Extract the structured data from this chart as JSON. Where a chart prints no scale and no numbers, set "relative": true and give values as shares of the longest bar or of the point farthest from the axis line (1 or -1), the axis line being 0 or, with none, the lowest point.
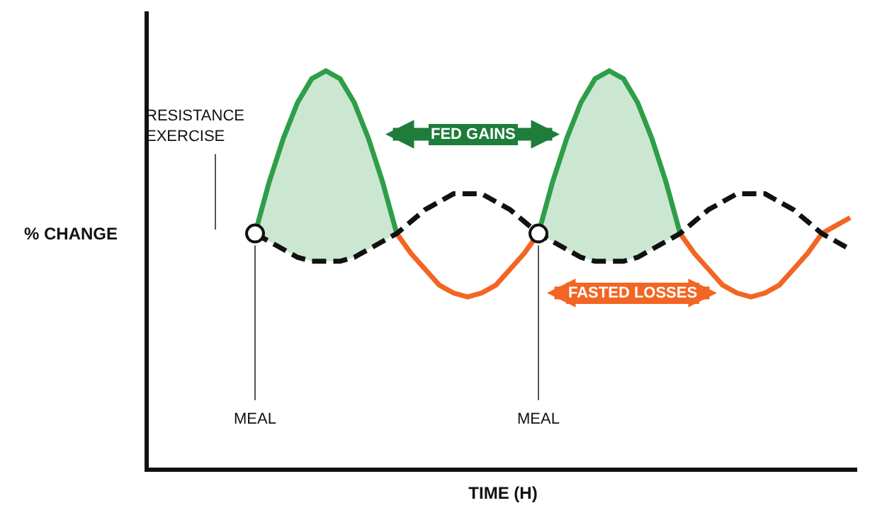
{
  "chart_data": {
    "type": "line",
    "relative": true,
    "xlabel": "TIME (H)",
    "ylabel": "% CHANGE",
    "grid": false,
    "tick_labels": false,
    "categories": [
      null,
      null,
      null,
      null,
      null,
      null,
      null,
      null,
      null,
      null,
      null,
      null,
      null,
      null,
      null,
      null,
      null,
      null,
      null,
      null,
      null,
      null,
      null,
      null,
      null,
      null,
      null,
      null,
      null,
      null,
      null,
      null,
      null,
      null,
      null,
      null,
      null,
      null,
      null,
      null,
      null,
      null,
      null,
      null,
      null,
      null,
      null,
      null,
      null,
      null,
      null
    ],
    "series": [
      {
        "color": "#2e9e48",
        "values": [
          null,
          null,
          null,
          null,
          null,
          null,
          null,
          null,
          0.59,
          0.72,
          0.83,
          0.92,
          0.98,
          1.0,
          0.98,
          0.92,
          0.83,
          0.72,
          0.59,
          null,
          null,
          null,
          null,
          null,
          null,
          null,
          null,
          null,
          null,
          null,
          null,
          null,
          null,
          null,
          null,
          null,
          null,
          null,
          null,
          null,
          null,
          null,
          null,
          null,
          null,
          null,
          null,
          null,
          null,
          null,
          null
        ],
        "lower": [
          null,
          null,
          null,
          null,
          null,
          null,
          null,
          null,
          0.59,
          0.57,
          0.55,
          0.53,
          0.52,
          0.52,
          0.52,
          0.53,
          0.55,
          0.57,
          0.59,
          null,
          null,
          null,
          null,
          null,
          null,
          null,
          null,
          null,
          null,
          null,
          null,
          null,
          null,
          null,
          null,
          null,
          null,
          null,
          null,
          null,
          null,
          null,
          null,
          null,
          null,
          null,
          null,
          null,
          null,
          null,
          null
        ],
        "upper": [
          null,
          null,
          null,
          null,
          null,
          null,
          null,
          null,
          0.59,
          0.72,
          0.83,
          0.92,
          0.98,
          1.0,
          0.98,
          0.92,
          0.83,
          0.72,
          0.59,
          null,
          null,
          null,
          null,
          null,
          null,
          null,
          null,
          null,
          null,
          null,
          null,
          null,
          null,
          null,
          null,
          null,
          null,
          null,
          null,
          null,
          null,
          null,
          null,
          null,
          null,
          null,
          null,
          null,
          null,
          null,
          null
        ]
      },
      {
        "color": "#2e9e48",
        "values": [
          null,
          null,
          null,
          null,
          null,
          null,
          null,
          null,
          null,
          null,
          null,
          null,
          null,
          null,
          null,
          null,
          null,
          null,
          null,
          null,
          null,
          null,
          null,
          null,
          null,
          null,
          null,
          null,
          0.59,
          0.72,
          0.83,
          0.92,
          0.98,
          1.0,
          0.98,
          0.92,
          0.83,
          0.72,
          0.59,
          null,
          null,
          null,
          null,
          null,
          null,
          null,
          null,
          null,
          null,
          null,
          null
        ],
        "lower": [
          null,
          null,
          null,
          null,
          null,
          null,
          null,
          null,
          null,
          null,
          null,
          null,
          null,
          null,
          null,
          null,
          null,
          null,
          null,
          null,
          null,
          null,
          null,
          null,
          null,
          null,
          null,
          null,
          0.59,
          0.57,
          0.55,
          0.53,
          0.52,
          0.52,
          0.52,
          0.53,
          0.55,
          0.57,
          0.59,
          null,
          null,
          null,
          null,
          null,
          null,
          null,
          null,
          null,
          null,
          null,
          null
        ],
        "upper": [
          null,
          null,
          null,
          null,
          null,
          null,
          null,
          null,
          null,
          null,
          null,
          null,
          null,
          null,
          null,
          null,
          null,
          null,
          null,
          null,
          null,
          null,
          null,
          null,
          null,
          null,
          null,
          null,
          0.59,
          0.72,
          0.83,
          0.92,
          0.98,
          1.0,
          0.98,
          0.92,
          0.83,
          0.72,
          0.59,
          null,
          null,
          null,
          null,
          null,
          null,
          null,
          null,
          null,
          null,
          null,
          null
        ]
      },
      {
        "color": "#f26522",
        "values": [
          null,
          null,
          null,
          null,
          null,
          null,
          null,
          null,
          null,
          null,
          null,
          null,
          null,
          null,
          null,
          null,
          null,
          null,
          0.59,
          0.54,
          0.5,
          0.46,
          0.44,
          0.43,
          0.44,
          0.46,
          0.5,
          0.54,
          0.59,
          null,
          null,
          null,
          null,
          null,
          null,
          null,
          null,
          null,
          null,
          null,
          null,
          null,
          null,
          null,
          null,
          null,
          null,
          null,
          null,
          null,
          null
        ]
      },
      {
        "color": "#f26522",
        "values": [
          null,
          null,
          null,
          null,
          null,
          null,
          null,
          null,
          null,
          null,
          null,
          null,
          null,
          null,
          null,
          null,
          null,
          null,
          null,
          null,
          null,
          null,
          null,
          null,
          null,
          null,
          null,
          null,
          null,
          null,
          null,
          null,
          null,
          null,
          null,
          null,
          null,
          null,
          0.59,
          0.54,
          0.5,
          0.46,
          0.44,
          0.43,
          0.44,
          0.46,
          0.5,
          0.54,
          0.59,
          0.61,
          0.63
        ]
      },
      {
        "color": "#111111",
        "line_style": "dashed",
        "values": [
          null,
          null,
          null,
          null,
          null,
          null,
          null,
          null,
          0.59,
          0.57,
          0.55,
          0.53,
          0.52,
          0.52,
          0.52,
          0.53,
          0.55,
          0.57,
          0.59,
          0.62,
          0.65,
          0.67,
          0.69,
          0.69,
          0.69,
          0.67,
          0.65,
          0.62,
          0.59,
          0.57,
          0.55,
          0.53,
          0.52,
          0.52,
          0.52,
          0.53,
          0.55,
          0.57,
          0.59,
          0.62,
          0.65,
          0.67,
          0.69,
          0.69,
          0.69,
          0.67,
          0.65,
          0.62,
          0.59,
          0.57,
          0.55
        ]
      }
    ],
    "annotations": [
      "RESISTANCE\nEXERCISE",
      "FED GAINS",
      "FASTED LOSSES",
      "MEAL",
      "MEAL"
    ]
  }
}
